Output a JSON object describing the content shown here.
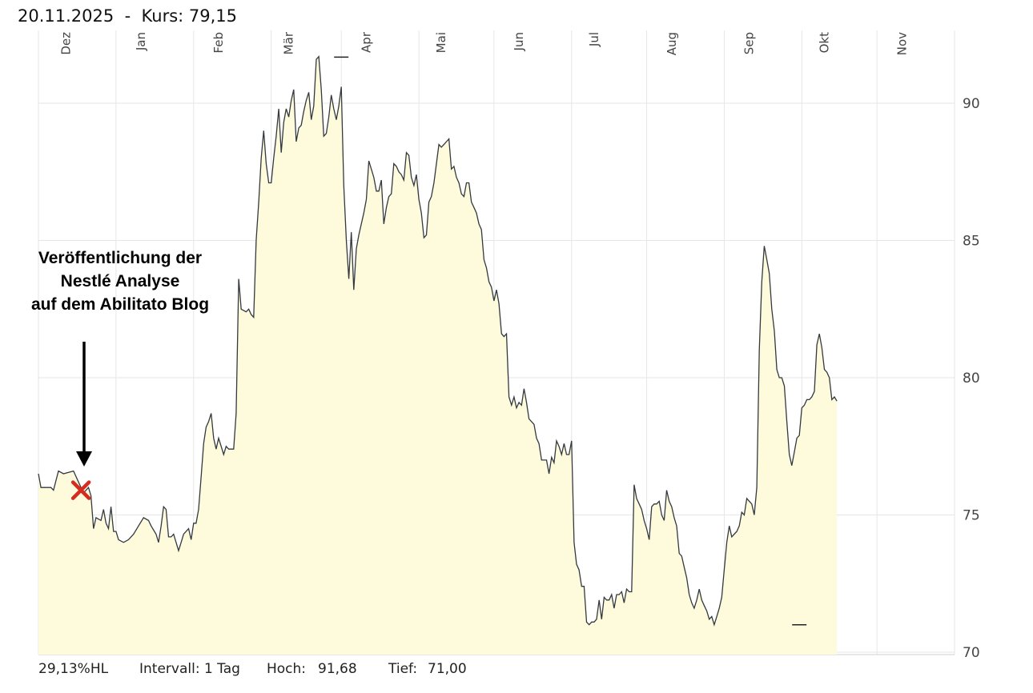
{
  "header": {
    "date": "20.11.2025",
    "separator": "-",
    "price_label": "Kurs: 79,15"
  },
  "annotation": {
    "lines": [
      "Veröffentlichung der",
      "Nestlé Analyse",
      "auf dem Abilitato Blog"
    ],
    "marker_color": "#d62b1f",
    "arrow_color": "#000000"
  },
  "footer": {
    "change": "29,13%HL",
    "interval": "Intervall: 1 Tag",
    "high_label": "Hoch:",
    "high_value": "91,68",
    "low_label": "Tief:",
    "low_value": "71,00"
  },
  "colors": {
    "fill": "#fefbdc",
    "line": "#33393f",
    "grid": "#e6e6e6"
  },
  "chart_data": {
    "type": "area",
    "title": "",
    "xlabel": "",
    "ylabel": "",
    "ylim": [
      70,
      92.5
    ],
    "yticks": [
      70,
      75,
      80,
      85,
      90
    ],
    "month_labels": [
      "Dez",
      "Jan",
      "Feb",
      "Mär",
      "Apr",
      "Mai",
      "Jun",
      "Jul",
      "Aug",
      "Sep",
      "Okt",
      "Nov"
    ],
    "month_label_days": [
      11,
      41,
      72,
      100,
      131,
      161,
      192,
      222,
      253,
      284,
      314,
      345
    ],
    "grid_days": [
      0,
      31,
      62,
      93,
      121,
      152,
      182,
      213,
      243,
      274,
      305,
      335,
      366
    ],
    "x_unit": "days since 20.11.2024",
    "x_end": 366,
    "marker": {
      "x": 17,
      "y": 75.9,
      "shape": "x"
    },
    "high": {
      "x": 121,
      "y": 91.68,
      "label": "91,68"
    },
    "low": {
      "x": 304,
      "y": 71.0,
      "label": "71,00"
    },
    "series": [
      {
        "values": [
          [
            0,
            76.5
          ],
          [
            1,
            76.0
          ],
          [
            5,
            76.0
          ],
          [
            6,
            75.9
          ],
          [
            8,
            76.6
          ],
          [
            10,
            76.5
          ],
          [
            14,
            76.6
          ],
          [
            16,
            76.2
          ],
          [
            18,
            75.8
          ],
          [
            20,
            76.0
          ],
          [
            21,
            75.7
          ],
          [
            22,
            74.5
          ],
          [
            23,
            74.9
          ],
          [
            25,
            74.8
          ],
          [
            26,
            75.2
          ],
          [
            27,
            74.7
          ],
          [
            28,
            74.5
          ],
          [
            29,
            75.3
          ],
          [
            30,
            74.4
          ],
          [
            31,
            74.4
          ],
          [
            32,
            74.1
          ],
          [
            34,
            74.0
          ],
          [
            36,
            74.1
          ],
          [
            38,
            74.3
          ],
          [
            40,
            74.6
          ],
          [
            42,
            74.9
          ],
          [
            44,
            74.8
          ],
          [
            45,
            74.6
          ],
          [
            47,
            74.3
          ],
          [
            48,
            74.0
          ],
          [
            49,
            74.6
          ],
          [
            50,
            75.3
          ],
          [
            51,
            75.2
          ],
          [
            52,
            74.2
          ],
          [
            53,
            74.2
          ],
          [
            54,
            74.3
          ],
          [
            55,
            74.0
          ],
          [
            56,
            73.7
          ],
          [
            57,
            74.0
          ],
          [
            58,
            74.3
          ],
          [
            60,
            74.5
          ],
          [
            61,
            74.1
          ],
          [
            62,
            74.7
          ],
          [
            63,
            74.7
          ],
          [
            64,
            75.2
          ],
          [
            65,
            76.4
          ],
          [
            66,
            77.6
          ],
          [
            67,
            78.2
          ],
          [
            68,
            78.4
          ],
          [
            69,
            78.7
          ],
          [
            70,
            77.8
          ],
          [
            71,
            77.4
          ],
          [
            72,
            77.8
          ],
          [
            73,
            77.5
          ],
          [
            74,
            77.2
          ],
          [
            75,
            77.5
          ],
          [
            76,
            77.4
          ],
          [
            77,
            77.4
          ],
          [
            78,
            77.4
          ],
          [
            79,
            78.7
          ],
          [
            80,
            83.6
          ],
          [
            81,
            82.5
          ],
          [
            83,
            82.4
          ],
          [
            84,
            82.5
          ],
          [
            85,
            82.3
          ],
          [
            86,
            82.2
          ],
          [
            87,
            85.0
          ],
          [
            88,
            86.4
          ],
          [
            89,
            88.0
          ],
          [
            90,
            89.0
          ],
          [
            91,
            87.8
          ],
          [
            92,
            87.1
          ],
          [
            93,
            87.1
          ],
          [
            94,
            88.0
          ],
          [
            95,
            88.8
          ],
          [
            96,
            89.8
          ],
          [
            97,
            88.2
          ],
          [
            98,
            89.3
          ],
          [
            99,
            89.8
          ],
          [
            100,
            89.5
          ],
          [
            101,
            90.1
          ],
          [
            102,
            90.5
          ],
          [
            103,
            88.6
          ],
          [
            104,
            89.1
          ],
          [
            105,
            89.2
          ],
          [
            106,
            89.7
          ],
          [
            107,
            90.1
          ],
          [
            108,
            90.4
          ],
          [
            109,
            89.4
          ],
          [
            110,
            89.9
          ],
          [
            111,
            91.6
          ],
          [
            112,
            91.7
          ],
          [
            113,
            90.5
          ],
          [
            114,
            88.8
          ],
          [
            115,
            88.9
          ],
          [
            116,
            89.5
          ],
          [
            117,
            90.3
          ],
          [
            118,
            89.8
          ],
          [
            119,
            89.4
          ],
          [
            120,
            89.9
          ],
          [
            121,
            90.6
          ],
          [
            122,
            87.0
          ],
          [
            123,
            85.0
          ],
          [
            124,
            83.6
          ],
          [
            125,
            85.3
          ],
          [
            126,
            83.2
          ],
          [
            127,
            84.7
          ],
          [
            128,
            85.2
          ],
          [
            129,
            85.6
          ],
          [
            130,
            86.0
          ],
          [
            131,
            86.5
          ],
          [
            132,
            87.9
          ],
          [
            133,
            87.6
          ],
          [
            134,
            87.3
          ],
          [
            135,
            86.8
          ],
          [
            136,
            86.8
          ],
          [
            137,
            87.2
          ],
          [
            138,
            85.6
          ],
          [
            139,
            86.2
          ],
          [
            140,
            86.6
          ],
          [
            141,
            86.7
          ],
          [
            142,
            87.8
          ],
          [
            143,
            87.7
          ],
          [
            144,
            87.5
          ],
          [
            145,
            87.4
          ],
          [
            146,
            87.2
          ],
          [
            147,
            88.2
          ],
          [
            148,
            88.1
          ],
          [
            149,
            87.3
          ],
          [
            150,
            87.0
          ],
          [
            151,
            87.4
          ],
          [
            152,
            86.5
          ],
          [
            153,
            86.0
          ],
          [
            154,
            85.1
          ],
          [
            155,
            85.2
          ],
          [
            156,
            86.4
          ],
          [
            157,
            86.6
          ],
          [
            158,
            87.1
          ],
          [
            159,
            87.8
          ],
          [
            160,
            88.5
          ],
          [
            161,
            88.4
          ],
          [
            162,
            88.5
          ],
          [
            163,
            88.6
          ],
          [
            164,
            88.7
          ],
          [
            165,
            87.6
          ],
          [
            166,
            87.7
          ],
          [
            167,
            87.3
          ],
          [
            168,
            87.1
          ],
          [
            169,
            86.7
          ],
          [
            170,
            86.6
          ],
          [
            171,
            87.1
          ],
          [
            172,
            87.1
          ],
          [
            173,
            86.4
          ],
          [
            174,
            86.2
          ],
          [
            175,
            86.0
          ],
          [
            176,
            85.6
          ],
          [
            177,
            85.4
          ],
          [
            178,
            84.3
          ],
          [
            179,
            84.0
          ],
          [
            180,
            83.5
          ],
          [
            181,
            83.3
          ],
          [
            182,
            82.8
          ],
          [
            183,
            83.2
          ],
          [
            184,
            82.7
          ],
          [
            185,
            81.6
          ],
          [
            186,
            81.5
          ],
          [
            187,
            81.6
          ],
          [
            188,
            79.3
          ],
          [
            189,
            79.0
          ],
          [
            190,
            79.3
          ],
          [
            191,
            78.9
          ],
          [
            192,
            79.1
          ],
          [
            193,
            79.0
          ],
          [
            194,
            79.6
          ],
          [
            195,
            79.1
          ],
          [
            196,
            78.5
          ],
          [
            197,
            78.4
          ],
          [
            198,
            78.3
          ],
          [
            199,
            77.8
          ],
          [
            200,
            77.6
          ],
          [
            201,
            77.0
          ],
          [
            202,
            77.0
          ],
          [
            203,
            77.0
          ],
          [
            204,
            76.5
          ],
          [
            205,
            77.1
          ],
          [
            206,
            76.9
          ],
          [
            207,
            77.7
          ],
          [
            208,
            77.5
          ],
          [
            209,
            77.2
          ],
          [
            210,
            77.6
          ],
          [
            211,
            77.2
          ],
          [
            212,
            77.2
          ],
          [
            213,
            77.7
          ],
          [
            214,
            74.0
          ],
          [
            215,
            73.2
          ],
          [
            216,
            73.0
          ],
          [
            217,
            72.4
          ],
          [
            218,
            72.4
          ],
          [
            219,
            71.1
          ],
          [
            220,
            71.0
          ],
          [
            221,
            71.1
          ],
          [
            222,
            71.1
          ],
          [
            223,
            71.2
          ],
          [
            224,
            71.9
          ],
          [
            225,
            71.2
          ],
          [
            226,
            72.0
          ],
          [
            227,
            71.9
          ],
          [
            228,
            71.9
          ],
          [
            229,
            72.1
          ],
          [
            230,
            71.6
          ],
          [
            231,
            72.1
          ],
          [
            232,
            72.1
          ],
          [
            233,
            72.2
          ],
          [
            234,
            71.8
          ],
          [
            235,
            72.3
          ],
          [
            236,
            72.2
          ],
          [
            237,
            72.2
          ],
          [
            238,
            76.1
          ],
          [
            239,
            75.6
          ],
          [
            240,
            75.4
          ],
          [
            241,
            75.2
          ],
          [
            242,
            74.8
          ],
          [
            243,
            74.5
          ],
          [
            244,
            74.1
          ],
          [
            245,
            75.3
          ],
          [
            246,
            75.4
          ],
          [
            247,
            75.4
          ],
          [
            248,
            75.5
          ],
          [
            249,
            75.0
          ],
          [
            250,
            74.8
          ],
          [
            251,
            75.9
          ],
          [
            252,
            75.5
          ],
          [
            253,
            75.3
          ],
          [
            254,
            74.9
          ],
          [
            255,
            74.6
          ],
          [
            256,
            73.6
          ],
          [
            257,
            73.5
          ],
          [
            258,
            73.1
          ],
          [
            259,
            72.7
          ],
          [
            260,
            72.1
          ],
          [
            261,
            71.8
          ],
          [
            262,
            71.6
          ],
          [
            263,
            71.9
          ],
          [
            264,
            72.3
          ],
          [
            265,
            71.9
          ],
          [
            266,
            71.7
          ],
          [
            267,
            71.5
          ],
          [
            268,
            71.2
          ],
          [
            269,
            71.3
          ],
          [
            270,
            71.0
          ],
          [
            271,
            71.3
          ],
          [
            272,
            71.6
          ],
          [
            273,
            72.0
          ],
          [
            274,
            73.0
          ],
          [
            275,
            74.0
          ],
          [
            276,
            74.6
          ],
          [
            277,
            74.2
          ],
          [
            278,
            74.3
          ],
          [
            279,
            74.4
          ],
          [
            280,
            74.6
          ],
          [
            281,
            75.1
          ],
          [
            282,
            75.0
          ],
          [
            283,
            75.6
          ],
          [
            284,
            75.5
          ],
          [
            285,
            75.4
          ],
          [
            286,
            75.0
          ],
          [
            287,
            76.0
          ],
          [
            288,
            81.0
          ],
          [
            289,
            83.5
          ],
          [
            290,
            84.8
          ],
          [
            291,
            84.3
          ],
          [
            292,
            83.8
          ],
          [
            293,
            82.5
          ],
          [
            294,
            81.7
          ],
          [
            295,
            80.3
          ],
          [
            296,
            80.0
          ],
          [
            297,
            80.0
          ],
          [
            298,
            79.7
          ],
          [
            299,
            78.4
          ],
          [
            300,
            77.2
          ],
          [
            301,
            76.8
          ],
          [
            302,
            77.3
          ],
          [
            303,
            77.8
          ],
          [
            304,
            77.9
          ],
          [
            305,
            78.9
          ],
          [
            306,
            79.0
          ],
          [
            307,
            79.2
          ],
          [
            308,
            79.2
          ],
          [
            309,
            79.3
          ],
          [
            310,
            79.5
          ],
          [
            311,
            81.2
          ],
          [
            312,
            81.6
          ],
          [
            313,
            81.1
          ],
          [
            314,
            80.3
          ],
          [
            315,
            80.2
          ],
          [
            316,
            80.0
          ],
          [
            317,
            79.2
          ],
          [
            318,
            79.3
          ],
          [
            319,
            79.15
          ]
        ]
      }
    ]
  }
}
